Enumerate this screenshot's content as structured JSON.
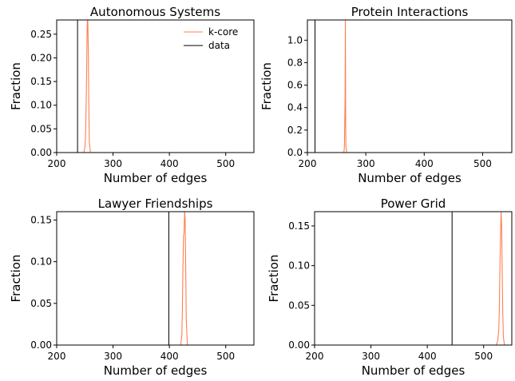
{
  "chart_data": [
    {
      "type": "line",
      "title": "Autonomous Systems",
      "xlabel": "Number of edges",
      "ylabel": "Fraction",
      "xlim": [
        200,
        550
      ],
      "ylim": [
        0,
        0.28
      ],
      "xticks": [
        200,
        300,
        400,
        500
      ],
      "yticks": [
        0.0,
        0.05,
        0.1,
        0.15,
        0.2,
        0.25
      ],
      "ytick_labels": [
        "0.00",
        "0.05",
        "0.10",
        "0.15",
        "0.20",
        "0.25"
      ],
      "series": [
        {
          "name": "k-core",
          "color": "#FF7F50",
          "x": [
            245,
            248,
            250,
            251,
            252,
            253,
            254,
            255,
            256,
            257,
            258,
            260
          ],
          "y": [
            0,
            0,
            0.01,
            0.03,
            0.08,
            0.16,
            0.26,
            0.3,
            0.22,
            0.1,
            0.02,
            0
          ]
        },
        {
          "name": "data",
          "color": "#000000",
          "vline": 237
        }
      ],
      "legend": {
        "position": "top-right"
      }
    },
    {
      "type": "line",
      "title": "Protein Interactions",
      "xlabel": "Number of edges",
      "ylabel": "Fraction",
      "xlim": [
        200,
        550
      ],
      "ylim": [
        0,
        1.18
      ],
      "xticks": [
        200,
        300,
        400,
        500
      ],
      "yticks": [
        0.0,
        0.2,
        0.4,
        0.6,
        0.8,
        1.0
      ],
      "ytick_labels": [
        "0.0",
        "0.2",
        "0.4",
        "0.6",
        "0.8",
        "1.0"
      ],
      "series": [
        {
          "name": "k-core",
          "color": "#FF7F50",
          "x": [
            262,
            263,
            263.5,
            264,
            264.5,
            265,
            265.5,
            266,
            267,
            268
          ],
          "y": [
            0,
            0.02,
            0.08,
            0.3,
            0.48,
            1.2,
            0.25,
            0.05,
            0.01,
            0
          ]
        },
        {
          "name": "data",
          "color": "#000000",
          "vline": 213
        }
      ]
    },
    {
      "type": "line",
      "title": "Lawyer Friendships",
      "xlabel": "Number of edges",
      "ylabel": "Fraction",
      "xlim": [
        200,
        550
      ],
      "ylim": [
        0,
        0.16
      ],
      "xticks": [
        200,
        300,
        400,
        500
      ],
      "yticks": [
        0.0,
        0.05,
        0.1,
        0.15
      ],
      "ytick_labels": [
        "0.00",
        "0.05",
        "0.10",
        "0.15"
      ],
      "series": [
        {
          "name": "k-core",
          "color": "#FF7F50",
          "x": [
            420,
            422,
            423,
            424,
            425,
            426,
            427,
            428,
            429,
            430,
            432
          ],
          "y": [
            0,
            0.01,
            0.04,
            0.09,
            0.13,
            0.135,
            0.16,
            0.15,
            0.09,
            0.03,
            0
          ]
        },
        {
          "name": "data",
          "color": "#000000",
          "vline": 399
        }
      ]
    },
    {
      "type": "line",
      "title": "Power Grid",
      "xlabel": "Number of edges",
      "ylabel": "Fraction",
      "xlim": [
        200,
        550
      ],
      "ylim": [
        0,
        0.168
      ],
      "xticks": [
        200,
        300,
        400,
        500
      ],
      "yticks": [
        0.0,
        0.05,
        0.1,
        0.15
      ],
      "ytick_labels": [
        "0.00",
        "0.05",
        "0.10",
        "0.15"
      ],
      "series": [
        {
          "name": "k-core",
          "color": "#FF7F50",
          "x": [
            522,
            525,
            527,
            528,
            529,
            530,
            531,
            532,
            533,
            534,
            535,
            537
          ],
          "y": [
            0,
            0.005,
            0.02,
            0.05,
            0.1,
            0.14,
            0.168,
            0.15,
            0.09,
            0.04,
            0.01,
            0
          ]
        },
        {
          "name": "data",
          "color": "#000000",
          "vline": 444
        }
      ]
    }
  ],
  "legend_labels": [
    "k-core",
    "data"
  ]
}
